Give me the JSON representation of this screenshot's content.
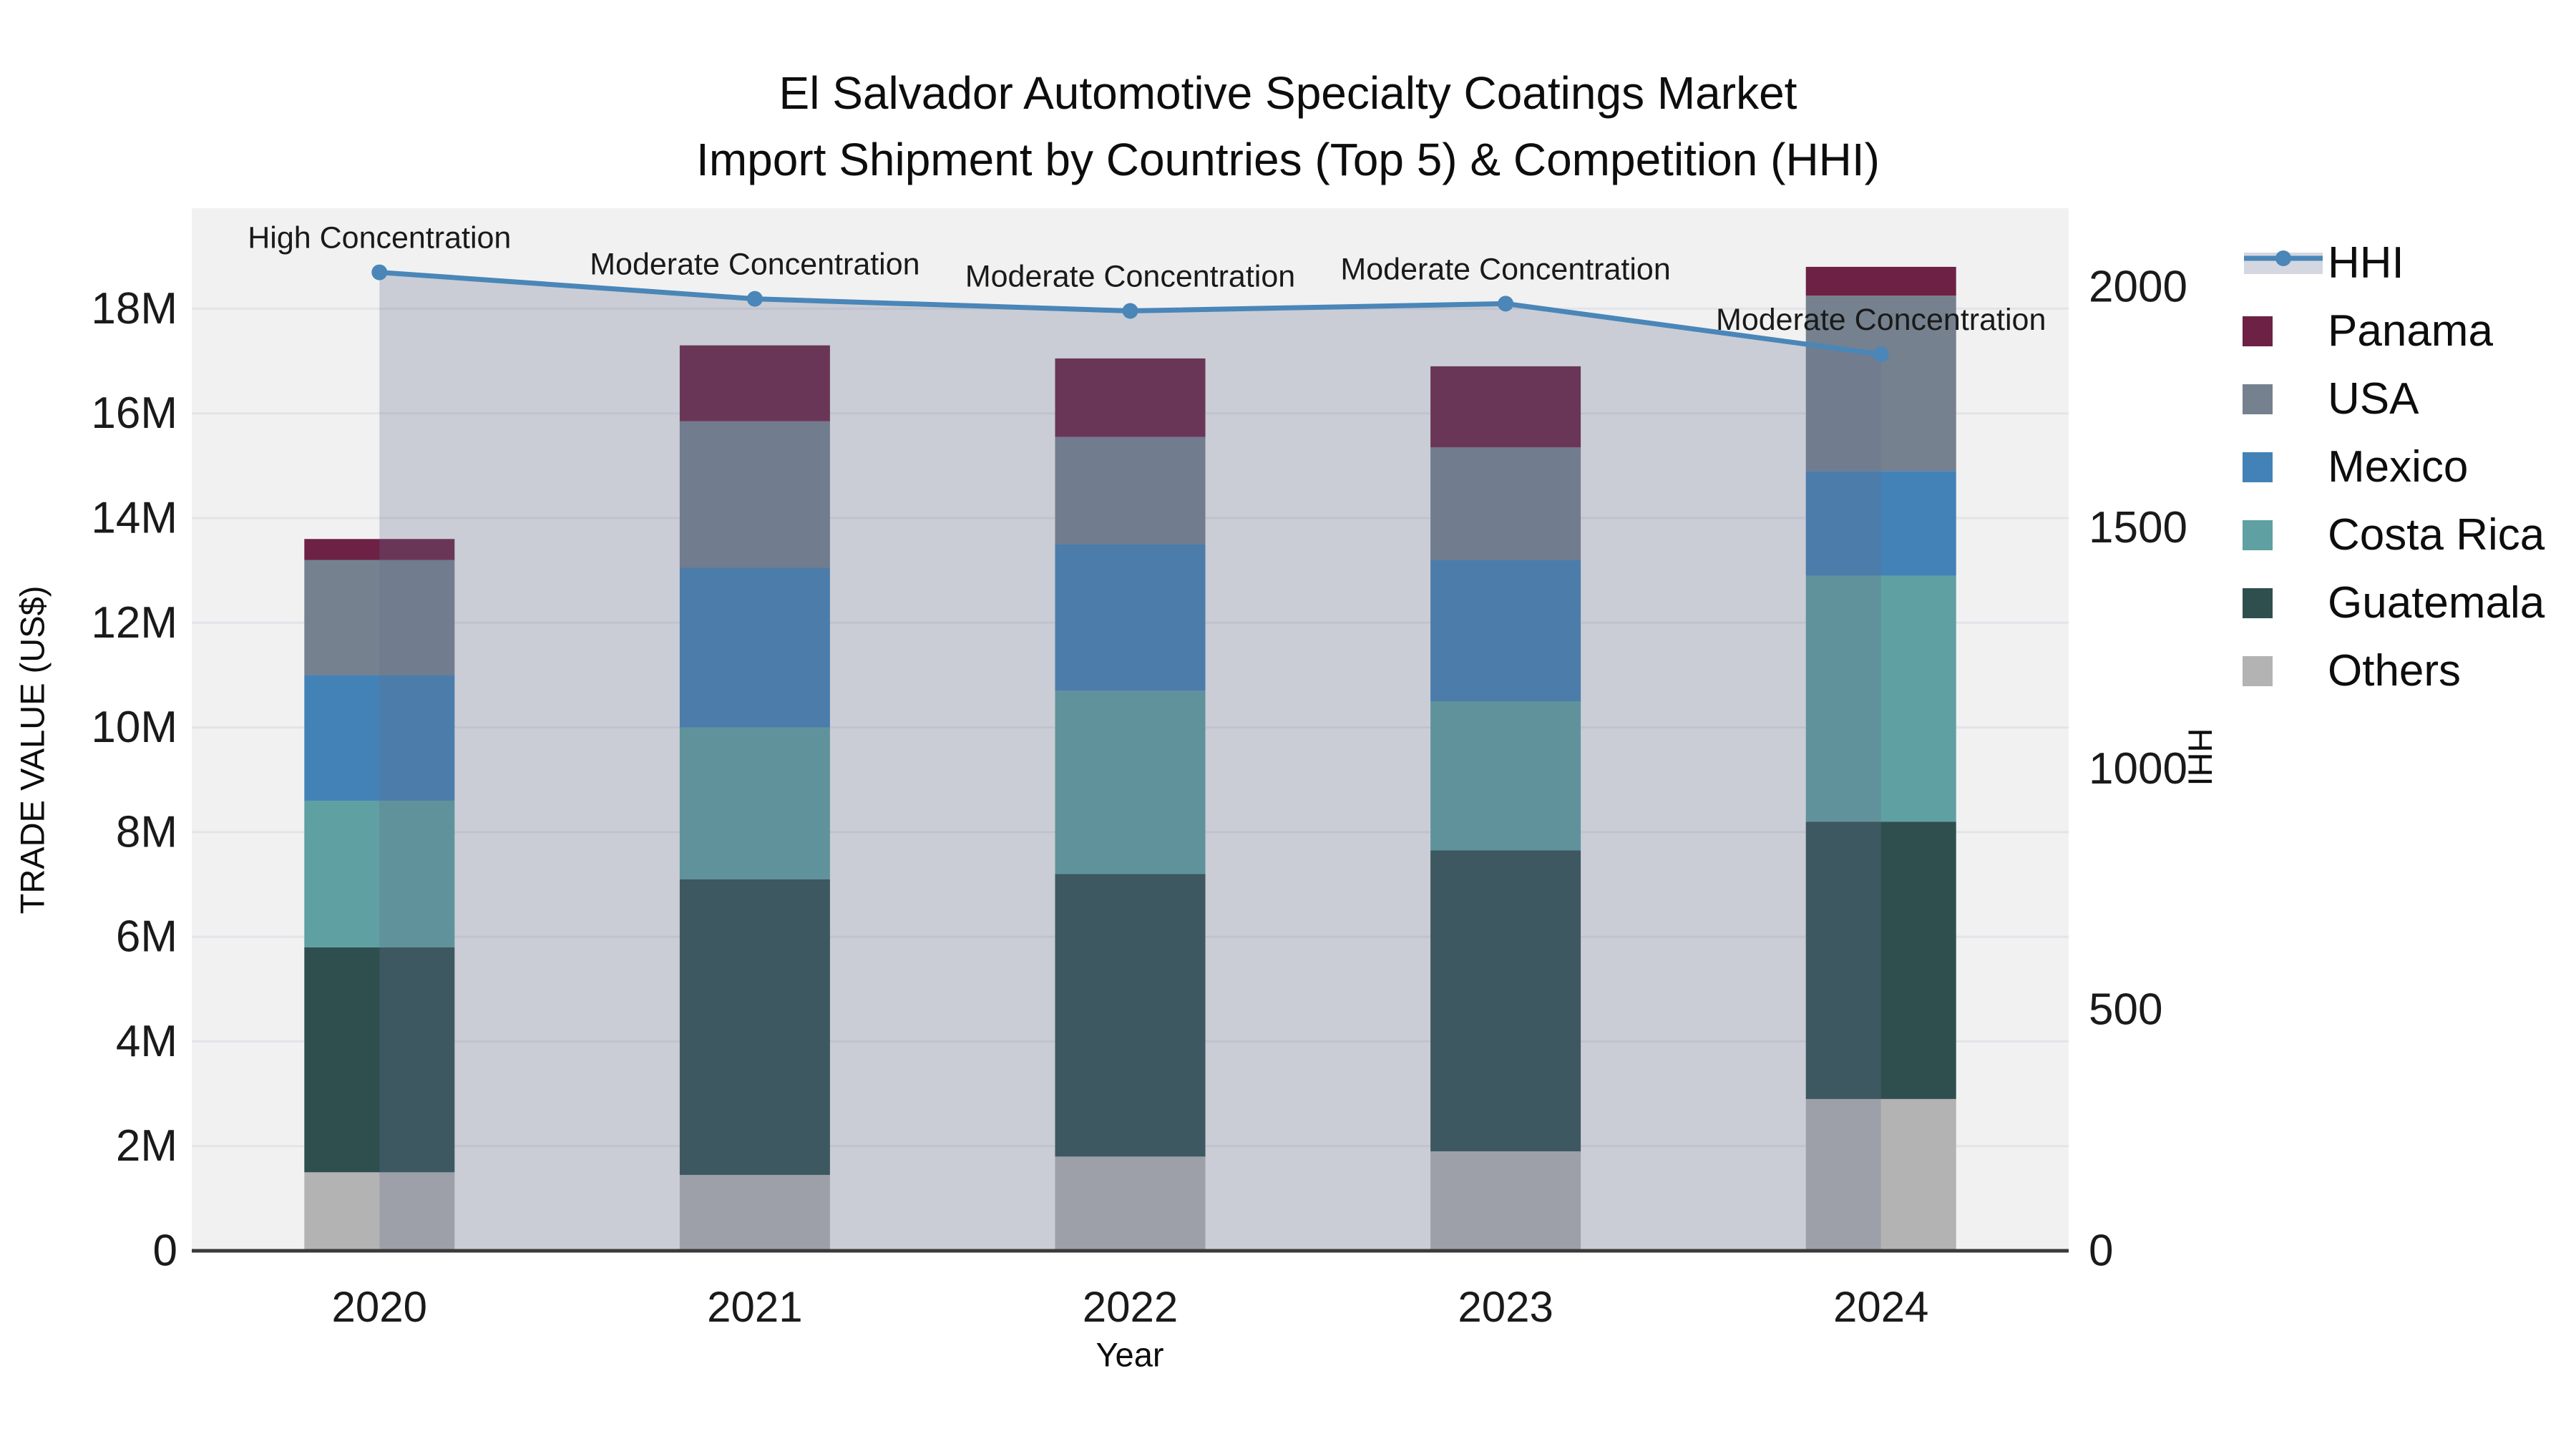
{
  "page": {
    "background": "#FFFFFF"
  },
  "chart_data": {
    "type": "bar",
    "stacked": true,
    "overlay": "line",
    "title": "El Salvador Automotive Specialty Coatings Market",
    "subtitle": "Import Shipment by Countries (Top 5) & Competition (HHI)",
    "xlabel": "Year",
    "ylabel": "TRADE VALUE (US$)",
    "y2label": "HHI",
    "categories": [
      "2020",
      "2021",
      "2022",
      "2023",
      "2024"
    ],
    "unit": "millions US$",
    "series": [
      {
        "name": "Others",
        "color": "#B3B3B3",
        "values_millions": [
          1.5,
          1.45,
          1.8,
          1.9,
          2.9
        ]
      },
      {
        "name": "Guatemala",
        "color": "#2F4F4F",
        "values_millions": [
          4.3,
          5.65,
          5.4,
          5.75,
          5.3
        ]
      },
      {
        "name": "Costa Rica",
        "color": "#5FA0A2",
        "values_millions": [
          2.8,
          2.9,
          3.5,
          2.85,
          4.7
        ]
      },
      {
        "name": "Mexico",
        "color": "#4382B6",
        "values_millions": [
          2.4,
          3.05,
          2.8,
          2.7,
          2.0
        ]
      },
      {
        "name": "USA",
        "color": "#76818F",
        "values_millions": [
          2.2,
          2.8,
          2.05,
          2.15,
          3.35
        ]
      },
      {
        "name": "Panama",
        "color": "#6D2144",
        "values_millions": [
          0.4,
          1.45,
          1.5,
          1.55,
          0.55
        ]
      }
    ],
    "totals_millions": [
      13.6,
      17.3,
      17.05,
      16.9,
      18.8
    ],
    "hhi_line": {
      "name": "HHI",
      "color": "#4A86B8",
      "area_color": "#63718C",
      "area_opacity": 0.28,
      "values": [
        2030,
        1975,
        1950,
        1965,
        1860
      ]
    },
    "annotations": [
      {
        "category": "2020",
        "text": "High Concentration"
      },
      {
        "category": "2021",
        "text": "Moderate Concentration"
      },
      {
        "category": "2022",
        "text": "Moderate Concentration"
      },
      {
        "category": "2023",
        "text": "Moderate Concentration"
      },
      {
        "category": "2024",
        "text": "Moderate Concentration"
      }
    ],
    "y_axis": {
      "max_value_millions": 19.92,
      "ticks": [
        {
          "label": "0",
          "value": 0
        },
        {
          "label": "2M",
          "value": 2
        },
        {
          "label": "4M",
          "value": 4
        },
        {
          "label": "6M",
          "value": 6
        },
        {
          "label": "8M",
          "value": 8
        },
        {
          "label": "10M",
          "value": 10
        },
        {
          "label": "12M",
          "value": 12
        },
        {
          "label": "14M",
          "value": 14
        },
        {
          "label": "16M",
          "value": 16
        },
        {
          "label": "18M",
          "value": 18
        }
      ]
    },
    "y2_axis": {
      "max_value": 2163,
      "ticks": [
        {
          "label": "0",
          "value": 0
        },
        {
          "label": "500",
          "value": 500
        },
        {
          "label": "1000",
          "value": 1000
        },
        {
          "label": "1500",
          "value": 1500
        },
        {
          "label": "2000",
          "value": 2000
        }
      ]
    },
    "legend": {
      "position": "top-right",
      "items": [
        {
          "label": "HHI",
          "type": "line",
          "color": "#4A86B8"
        },
        {
          "label": "Panama",
          "type": "square",
          "color": "#6D2144"
        },
        {
          "label": "USA",
          "type": "square",
          "color": "#76818F"
        },
        {
          "label": "Mexico",
          "type": "square",
          "color": "#4382B6"
        },
        {
          "label": "Costa Rica",
          "type": "square",
          "color": "#5FA0A2"
        },
        {
          "label": "Guatemala",
          "type": "square",
          "color": "#2F4F4F"
        },
        {
          "label": "Others",
          "type": "square",
          "color": "#B3B3B3"
        }
      ]
    },
    "colors": {
      "plot_background": "#F1F1F2",
      "gridline": "#E3E4E8",
      "axis_line": "#3A3A3A",
      "text": "#111111"
    }
  }
}
